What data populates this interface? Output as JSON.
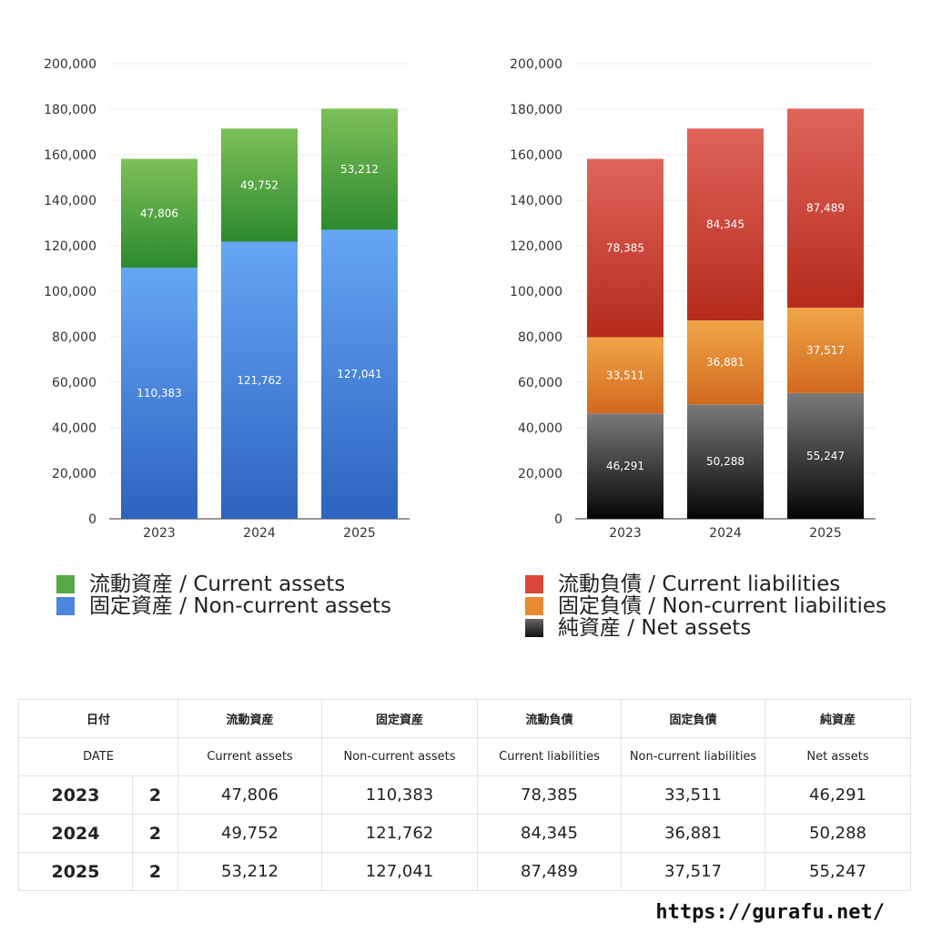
{
  "chart_data": [
    {
      "type": "bar",
      "stacked": true,
      "categories": [
        "2023",
        "2024",
        "2025"
      ],
      "series": [
        {
          "name": "固定資産 / Non-current assets",
          "values": [
            110383,
            121762,
            127041
          ],
          "color_top": "#66a6f5",
          "color_bottom": "#2d63c0"
        },
        {
          "name": "流動資産 / Current assets",
          "values": [
            47806,
            49752,
            53212
          ],
          "color_top": "#7cc058",
          "color_bottom": "#2d8a2e"
        }
      ],
      "ylim": [
        0,
        200000
      ],
      "yticks": [
        "0",
        "20,000",
        "40,000",
        "60,000",
        "80,000",
        "100,000",
        "120,000",
        "140,000",
        "160,000",
        "180,000",
        "200,000"
      ],
      "grid": true
    },
    {
      "type": "bar",
      "stacked": true,
      "categories": [
        "2023",
        "2024",
        "2025"
      ],
      "series": [
        {
          "name": "純資産 / Net assets",
          "values": [
            46291,
            50288,
            55247
          ],
          "color_top": "#7a7a7a",
          "color_bottom": "#050505"
        },
        {
          "name": "固定負債 / Non-current liabilities",
          "values": [
            33511,
            36881,
            37517
          ],
          "color_top": "#f0a548",
          "color_bottom": "#d2691e"
        },
        {
          "name": "流動負債 / Current liabilities",
          "values": [
            78385,
            84345,
            87489
          ],
          "color_top": "#e0645a",
          "color_bottom": "#b52b1c"
        }
      ],
      "ylim": [
        0,
        200000
      ],
      "yticks": [
        "0",
        "20,000",
        "40,000",
        "60,000",
        "80,000",
        "100,000",
        "120,000",
        "140,000",
        "160,000",
        "180,000",
        "200,000"
      ],
      "grid": true
    }
  ],
  "legend_left": [
    {
      "label": "流動資産 / Current assets",
      "color": "#55a845"
    },
    {
      "label": "固定資産 / Non-current assets",
      "color": "#4a86de"
    }
  ],
  "legend_right": [
    {
      "label": "流動負債 / Current liabilities",
      "color": "#d9473a"
    },
    {
      "label": "固定負債 / Non-current liabilities",
      "color": "#e88a30"
    },
    {
      "label": "純資産 / Net assets",
      "color": "#333333"
    }
  ],
  "table": {
    "header_jp": {
      "date": "日付",
      "current_assets": "流動資産",
      "noncurrent_assets": "固定資産",
      "current_liabilities": "流動負債",
      "noncurrent_liabilities": "固定負債",
      "net_assets": "純資産"
    },
    "header_en": {
      "date": "DATE",
      "current_assets": "Current assets",
      "noncurrent_assets": "Non-current assets",
      "current_liabilities": "Current liabilities",
      "noncurrent_liabilities": "Non-current liabilities",
      "net_assets": "Net assets"
    },
    "rows": [
      {
        "year": "2023",
        "q": "2",
        "current_assets": "47,806",
        "noncurrent_assets": "110,383",
        "current_liabilities": "78,385",
        "noncurrent_liabilities": "33,511",
        "net_assets": "46,291"
      },
      {
        "year": "2024",
        "q": "2",
        "current_assets": "49,752",
        "noncurrent_assets": "121,762",
        "current_liabilities": "84,345",
        "noncurrent_liabilities": "36,881",
        "net_assets": "50,288"
      },
      {
        "year": "2025",
        "q": "2",
        "current_assets": "53,212",
        "noncurrent_assets": "127,041",
        "current_liabilities": "87,489",
        "noncurrent_liabilities": "37,517",
        "net_assets": "55,247"
      }
    ]
  },
  "source": "https://gurafu.net/"
}
